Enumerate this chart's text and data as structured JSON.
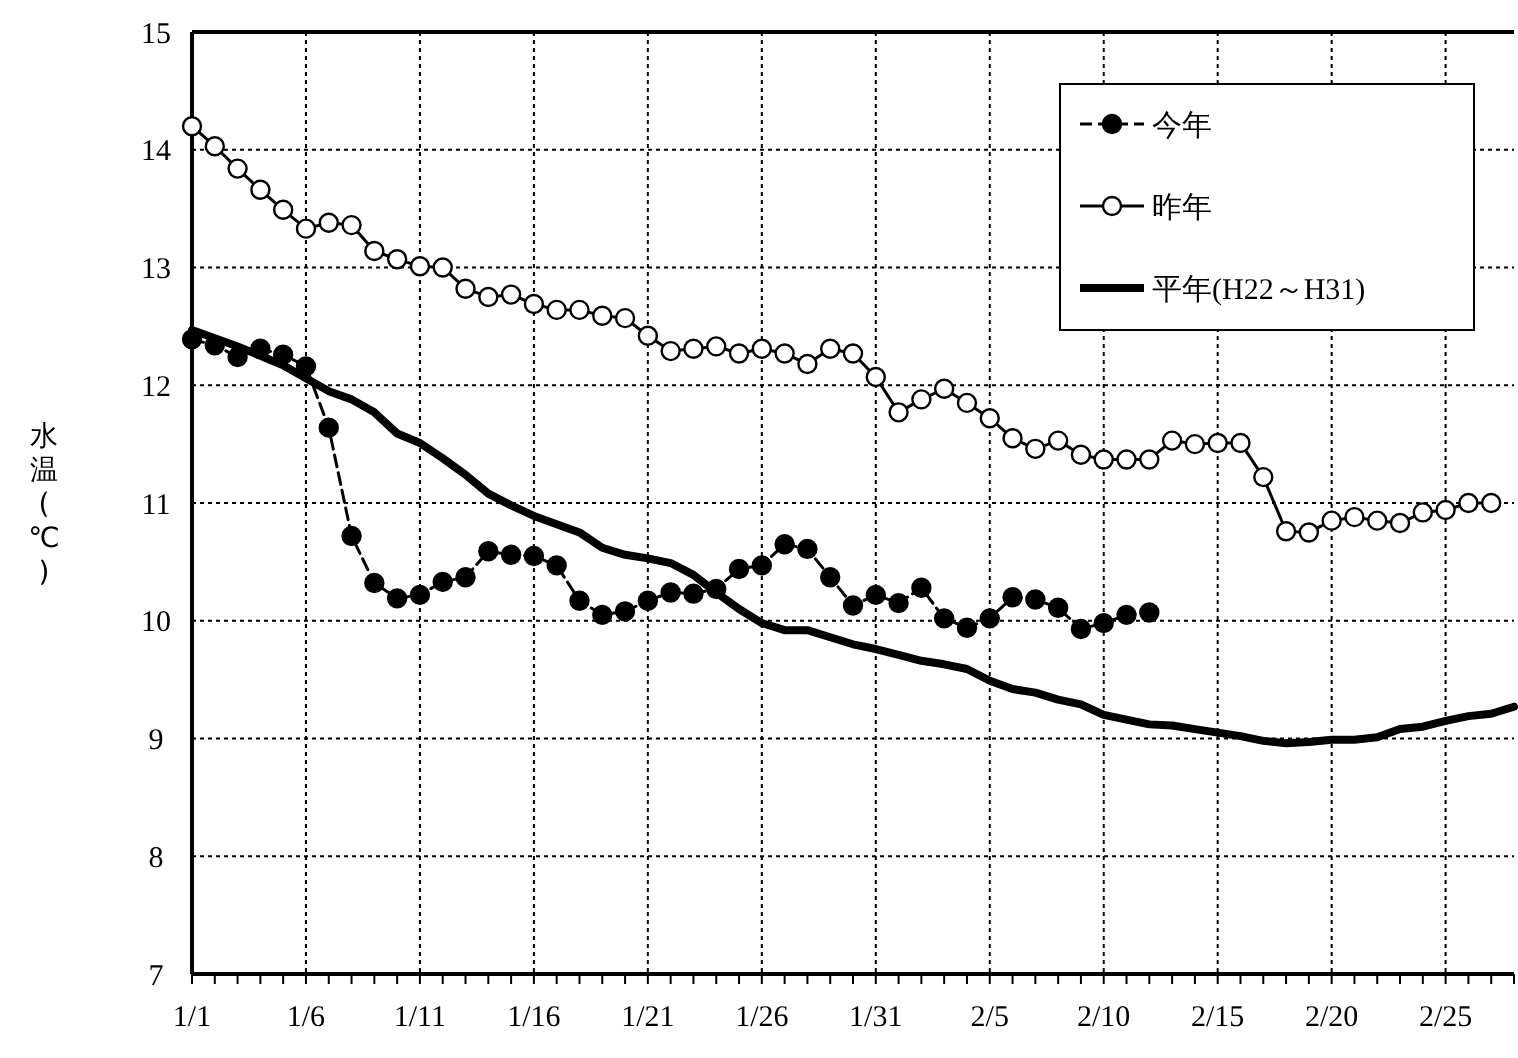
{
  "chart_data": {
    "type": "line",
    "ylabel": "水温(℃)",
    "ylim": [
      7,
      15
    ],
    "yticks": [
      7,
      8,
      9,
      10,
      11,
      12,
      13,
      14,
      15
    ],
    "xlim": [
      "--01-01",
      "--02-28"
    ],
    "xticks": [
      {
        "value": "--01-01",
        "label": "1/1"
      },
      {
        "value": "--01-02",
        "label": null
      },
      {
        "value": "--01-03",
        "label": null
      },
      {
        "value": "--01-04",
        "label": null
      },
      {
        "value": "--01-05",
        "label": null
      },
      {
        "value": "--01-06",
        "label": "1/6"
      },
      {
        "value": "--01-07",
        "label": null
      },
      {
        "value": "--01-08",
        "label": null
      },
      {
        "value": "--01-09",
        "label": null
      },
      {
        "value": "--01-10",
        "label": null
      },
      {
        "value": "--01-11",
        "label": "1/11"
      },
      {
        "value": "--01-12",
        "label": null
      },
      {
        "value": "--01-13",
        "label": null
      },
      {
        "value": "--01-14",
        "label": null
      },
      {
        "value": "--01-15",
        "label": null
      },
      {
        "value": "--01-16",
        "label": "1/16"
      },
      {
        "value": "--01-17",
        "label": null
      },
      {
        "value": "--01-18",
        "label": null
      },
      {
        "value": "--01-19",
        "label": null
      },
      {
        "value": "--01-20",
        "label": null
      },
      {
        "value": "--01-21",
        "label": "1/21"
      },
      {
        "value": "--01-22",
        "label": null
      },
      {
        "value": "--01-23",
        "label": null
      },
      {
        "value": "--01-24",
        "label": null
      },
      {
        "value": "--01-25",
        "label": null
      },
      {
        "value": "--01-26",
        "label": "1/26"
      },
      {
        "value": "--01-27",
        "label": null
      },
      {
        "value": "--01-28",
        "label": null
      },
      {
        "value": "--01-29",
        "label": null
      },
      {
        "value": "--01-30",
        "label": null
      },
      {
        "value": "--01-31",
        "label": "1/31"
      },
      {
        "value": "--02-01",
        "label": null
      },
      {
        "value": "--02-02",
        "label": null
      },
      {
        "value": "--02-03",
        "label": null
      },
      {
        "value": "--02-04",
        "label": null
      },
      {
        "value": "--02-05",
        "label": "2/5"
      },
      {
        "value": "--02-06",
        "label": null
      },
      {
        "value": "--02-07",
        "label": null
      },
      {
        "value": "--02-08",
        "label": null
      },
      {
        "value": "--02-09",
        "label": null
      },
      {
        "value": "--02-10",
        "label": "2/10"
      },
      {
        "value": "--02-11",
        "label": null
      },
      {
        "value": "--02-12",
        "label": null
      },
      {
        "value": "--02-13",
        "label": null
      },
      {
        "value": "--02-14",
        "label": null
      },
      {
        "value": "--02-15",
        "label": "2/15"
      },
      {
        "value": "--02-16",
        "label": null
      },
      {
        "value": "--02-17",
        "label": null
      },
      {
        "value": "--02-18",
        "label": null
      },
      {
        "value": "--02-19",
        "label": null
      },
      {
        "value": "--02-20",
        "label": "2/20"
      },
      {
        "value": "--02-21",
        "label": null
      },
      {
        "value": "--02-22",
        "label": null
      },
      {
        "value": "--02-23",
        "label": null
      },
      {
        "value": "--02-24",
        "label": null
      },
      {
        "value": "--02-25",
        "label": "2/25"
      },
      {
        "value": "--02-26",
        "label": null
      },
      {
        "value": "--02-27",
        "label": null
      },
      {
        "value": "--02-28",
        "label": null
      }
    ],
    "grid": true,
    "legend": "top right",
    "series": [
      {
        "name": "今年",
        "color": "#000000",
        "marker": "circle",
        "line_style": "dashed",
        "x": [
          "--01-01",
          "--01-02",
          "--01-03",
          "--01-04",
          "--01-05",
          "--01-06",
          "--01-07",
          "--01-08",
          "--01-09",
          "--01-10",
          "--01-11",
          "--01-12",
          "--01-13",
          "--01-14",
          "--01-15",
          "--01-16",
          "--01-17",
          "--01-18",
          "--01-19",
          "--01-20",
          "--01-21",
          "--01-22",
          "--01-23",
          "--01-24",
          "--01-25",
          "--01-26",
          "--01-27",
          "--01-28",
          "--01-29",
          "--01-30",
          "--01-31",
          "--02-01",
          "--02-02",
          "--02-03",
          "--02-04",
          "--02-05",
          "--02-06",
          "--02-07",
          "--02-08",
          "--02-09",
          "--02-10",
          "--02-11",
          "--02-12"
        ],
        "values": [
          12.39,
          12.34,
          12.24,
          12.31,
          12.26,
          12.16,
          11.64,
          10.72,
          10.32,
          10.19,
          10.22,
          10.33,
          10.37,
          10.59,
          10.56,
          10.55,
          10.47,
          10.17,
          10.05,
          10.08,
          10.17,
          10.24,
          10.23,
          10.27,
          10.44,
          10.47,
          10.65,
          10.61,
          10.37,
          10.13,
          10.22,
          10.15,
          10.28,
          10.02,
          9.94,
          10.02,
          10.2,
          10.18,
          10.11,
          9.93,
          9.98,
          10.05,
          10.07
        ]
      },
      {
        "name": "昨年",
        "color": "#ffffff",
        "marker": "circle",
        "line_style": "solid",
        "x": [
          "--01-01",
          "--01-02",
          "--01-03",
          "--01-04",
          "--01-05",
          "--01-06",
          "--01-07",
          "--01-08",
          "--01-09",
          "--01-10",
          "--01-11",
          "--01-12",
          "--01-13",
          "--01-14",
          "--01-15",
          "--01-16",
          "--01-17",
          "--01-18",
          "--01-19",
          "--01-20",
          "--01-21",
          "--01-22",
          "--01-23",
          "--01-24",
          "--01-25",
          "--01-26",
          "--01-27",
          "--01-28",
          "--01-29",
          "--01-30",
          "--01-31",
          "--02-01",
          "--02-02",
          "--02-03",
          "--02-04",
          "--02-05",
          "--02-06",
          "--02-07",
          "--02-08",
          "--02-09",
          "--02-10",
          "--02-11",
          "--02-12",
          "--02-13",
          "--02-14",
          "--02-15",
          "--02-16",
          "--02-17",
          "--02-18",
          "--02-19",
          "--02-20",
          "--02-21",
          "--02-22",
          "--02-23",
          "--02-24",
          "--02-25",
          "--02-26",
          "--02-27"
        ],
        "values": [
          14.2,
          14.03,
          13.84,
          13.66,
          13.49,
          13.33,
          13.38,
          13.36,
          13.14,
          13.07,
          13.01,
          13.0,
          12.82,
          12.75,
          12.77,
          12.69,
          12.64,
          12.64,
          12.59,
          12.57,
          12.42,
          12.29,
          12.31,
          12.33,
          12.27,
          12.31,
          12.27,
          12.18,
          12.31,
          12.27,
          12.07,
          11.77,
          11.88,
          11.97,
          11.85,
          11.72,
          11.55,
          11.46,
          11.53,
          11.41,
          11.37,
          11.37,
          11.37,
          11.53,
          11.5,
          11.51,
          11.51,
          11.22,
          10.76,
          10.75,
          10.85,
          10.88,
          10.85,
          10.83,
          10.92,
          10.94,
          11.0,
          11.0
        ]
      },
      {
        "name": "平年(H22～H31)",
        "color": "#000000",
        "marker": "none",
        "line_style": "solid",
        "x": [
          "--01-01",
          "--01-02",
          "--01-03",
          "--01-04",
          "--01-05",
          "--01-06",
          "--01-07",
          "--01-08",
          "--01-09",
          "--01-10",
          "--01-11",
          "--01-12",
          "--01-13",
          "--01-14",
          "--01-15",
          "--01-16",
          "--01-17",
          "--01-18",
          "--01-19",
          "--01-20",
          "--01-21",
          "--01-22",
          "--01-23",
          "--01-24",
          "--01-25",
          "--01-26",
          "--01-27",
          "--01-28",
          "--01-29",
          "--01-30",
          "--01-31",
          "--02-01",
          "--02-02",
          "--02-03",
          "--02-04",
          "--02-05",
          "--02-06",
          "--02-07",
          "--02-08",
          "--02-09",
          "--02-10",
          "--02-11",
          "--02-12",
          "--02-13",
          "--02-14",
          "--02-15",
          "--02-16",
          "--02-17",
          "--02-18",
          "--02-19",
          "--02-20",
          "--02-21",
          "--02-22",
          "--02-23",
          "--02-24",
          "--02-25",
          "--02-26",
          "--02-27",
          "--02-28"
        ],
        "values": [
          12.47,
          12.4,
          12.33,
          12.25,
          12.17,
          12.06,
          11.95,
          11.88,
          11.77,
          11.59,
          11.51,
          11.38,
          11.24,
          11.08,
          10.98,
          10.89,
          10.82,
          10.75,
          10.62,
          10.56,
          10.53,
          10.49,
          10.39,
          10.24,
          10.1,
          9.98,
          9.92,
          9.92,
          9.86,
          9.8,
          9.76,
          9.71,
          9.66,
          9.63,
          9.59,
          9.49,
          9.42,
          9.39,
          9.33,
          9.29,
          9.2,
          9.16,
          9.12,
          9.11,
          9.08,
          9.05,
          9.02,
          8.98,
          8.96,
          8.97,
          8.99,
          8.99,
          9.01,
          9.08,
          9.1,
          9.15,
          9.19,
          9.21,
          9.27
        ]
      }
    ]
  }
}
